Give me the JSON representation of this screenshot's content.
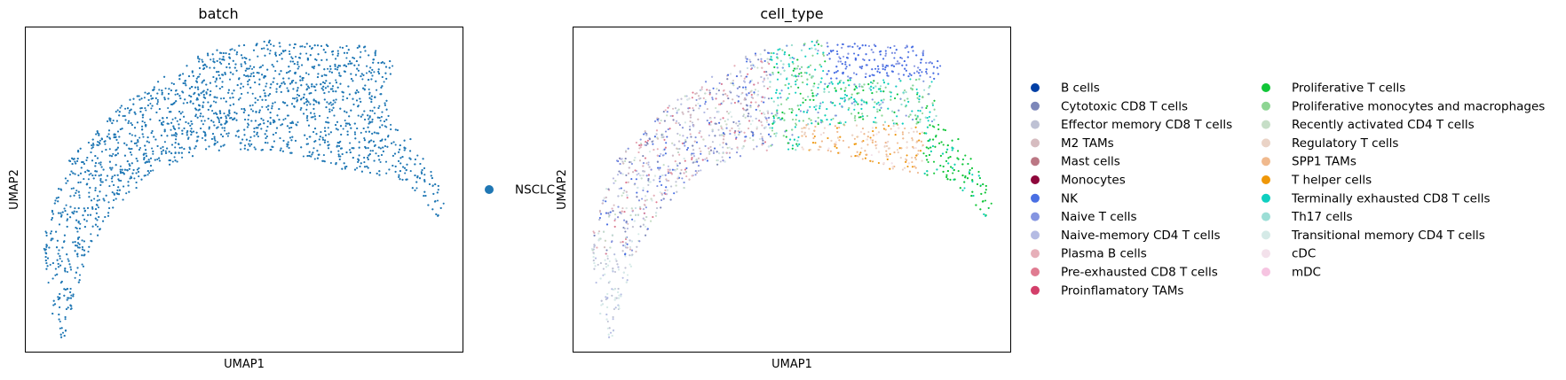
{
  "chart_data": [
    {
      "type": "scatter",
      "title": "batch",
      "xlabel": "UMAP1",
      "ylabel": "UMAP2",
      "ticks": false,
      "legend_position": "right",
      "categories": [
        {
          "name": "NSCLC",
          "color": "#1f77b4"
        }
      ]
    },
    {
      "type": "scatter",
      "title": "cell_type",
      "xlabel": "UMAP1",
      "ylabel": "UMAP2",
      "ticks": false,
      "legend_position": "right",
      "categories": [
        {
          "name": "B cells",
          "color": "#023fa5"
        },
        {
          "name": "Cytotoxic CD8 T cells",
          "color": "#7d87b9"
        },
        {
          "name": "Effector memory CD8 T cells",
          "color": "#bec1d4"
        },
        {
          "name": "M2 TAMs",
          "color": "#d6bcc0"
        },
        {
          "name": "Mast cells",
          "color": "#bb7784"
        },
        {
          "name": "Monocytes",
          "color": "#8e063b"
        },
        {
          "name": "NK",
          "color": "#4a6fe3"
        },
        {
          "name": "Naive T cells",
          "color": "#8595e1"
        },
        {
          "name": "Naive-memory CD4 T cells",
          "color": "#b5bbe3"
        },
        {
          "name": "Plasma B cells",
          "color": "#e6afb9"
        },
        {
          "name": "Pre-exhausted CD8 T cells",
          "color": "#e07b91"
        },
        {
          "name": "Proinflamatory TAMs",
          "color": "#d33f6a"
        },
        {
          "name": "Proliferative T cells",
          "color": "#11c638"
        },
        {
          "name": "Proliferative monocytes and macrophages",
          "color": "#8dd593"
        },
        {
          "name": "Recently activated CD4 T cells",
          "color": "#c6dec7"
        },
        {
          "name": "Regulatory T cells",
          "color": "#ead3c6"
        },
        {
          "name": "SPP1 TAMs",
          "color": "#f0b98d"
        },
        {
          "name": "T helper cells",
          "color": "#ef9708"
        },
        {
          "name": "Terminally exhausted CD8 T cells",
          "color": "#0fcfc0"
        },
        {
          "name": "Th17 cells",
          "color": "#9cded6"
        },
        {
          "name": "Transitional memory CD4 T cells",
          "color": "#d5eae7"
        },
        {
          "name": "cDC",
          "color": "#f3e1eb"
        },
        {
          "name": "mDC",
          "color": "#f6c4e1"
        }
      ]
    }
  ]
}
